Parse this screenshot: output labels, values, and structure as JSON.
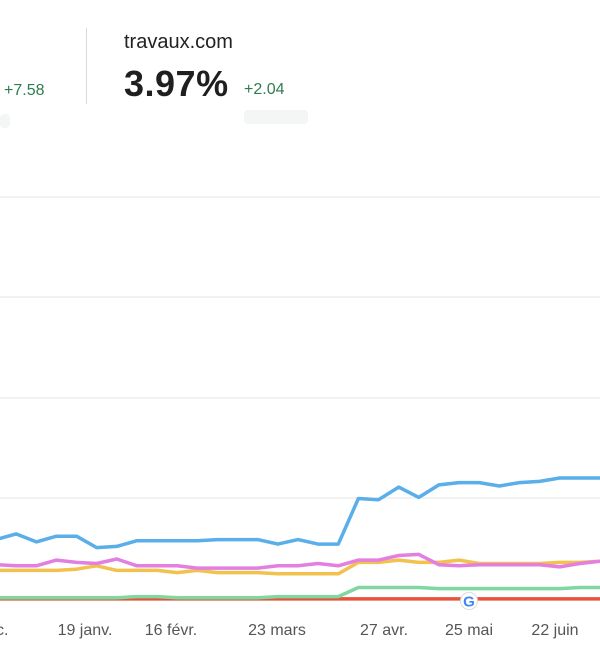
{
  "metrics": [
    {
      "domain": "",
      "value": "",
      "delta": "+7.58"
    },
    {
      "domain": "travaux.com",
      "value": "3.97%",
      "delta": "+2.04"
    }
  ],
  "colors": {
    "blue": "#5aaeea",
    "pink": "#e27fe0",
    "yellow": "#f2c14e",
    "green": "#7fd8a0",
    "red": "#e5533d",
    "grid": "#e5e5e5",
    "delta": "#2e7d4f"
  },
  "icons": {
    "google_marker": "google-g-icon"
  },
  "chart_data": {
    "type": "line",
    "x_tick_labels": [
      "c.",
      "19 janv.",
      "16 févr.",
      "23 mars",
      "27 avr.",
      "25 mai",
      "22 juin"
    ],
    "grid": true,
    "series": [
      {
        "color": "#5aaeea",
        "values": [
          5.3,
          5.8,
          5.1,
          5.6,
          5.6,
          4.6,
          4.7,
          5.2,
          5.2,
          5.2,
          5.2,
          5.3,
          5.3,
          5.3,
          4.9,
          5.3,
          4.9,
          4.9,
          8.9,
          8.8,
          9.9,
          9.0,
          10.1,
          10.3,
          10.3,
          10.0,
          10.3,
          10.4,
          10.7,
          10.7,
          10.7
        ]
      },
      {
        "color": "#e27fe0",
        "values": [
          3.1,
          3.0,
          3.0,
          3.5,
          3.3,
          3.2,
          3.6,
          3.0,
          3.0,
          3.0,
          2.8,
          2.8,
          2.8,
          2.8,
          3.0,
          3.0,
          3.2,
          3.0,
          3.5,
          3.5,
          3.9,
          4.0,
          3.1,
          3.0,
          3.1,
          3.1,
          3.1,
          3.1,
          2.9,
          3.2,
          3.4
        ]
      },
      {
        "color": "#f2c14e",
        "values": [
          2.6,
          2.6,
          2.6,
          2.6,
          2.7,
          3.0,
          2.6,
          2.6,
          2.6,
          2.4,
          2.6,
          2.4,
          2.4,
          2.4,
          2.3,
          2.3,
          2.3,
          2.3,
          3.3,
          3.3,
          3.5,
          3.3,
          3.3,
          3.5,
          3.2,
          3.2,
          3.2,
          3.2,
          3.3,
          3.3,
          3.4
        ]
      },
      {
        "color": "#7fd8a0",
        "values": [
          0.2,
          0.2,
          0.2,
          0.2,
          0.2,
          0.2,
          0.2,
          0.3,
          0.3,
          0.2,
          0.2,
          0.2,
          0.2,
          0.2,
          0.3,
          0.3,
          0.3,
          0.3,
          1.1,
          1.1,
          1.1,
          1.1,
          1.0,
          1.0,
          1.0,
          1.0,
          1.0,
          1.0,
          1.0,
          1.1,
          1.1
        ]
      },
      {
        "color": "#e5533d",
        "values": [
          0.1,
          0.1,
          0.1,
          0.1,
          0.1,
          0.1,
          0.1,
          0.1,
          0.1,
          0.1,
          0.1,
          0.1,
          0.1,
          0.1,
          0.1,
          0.1,
          0.1,
          0.1,
          0.1,
          0.1,
          0.1,
          0.1,
          0.1,
          0.1,
          0.1,
          0.1,
          0.1,
          0.1,
          0.1,
          0.1,
          0.1
        ]
      }
    ]
  }
}
